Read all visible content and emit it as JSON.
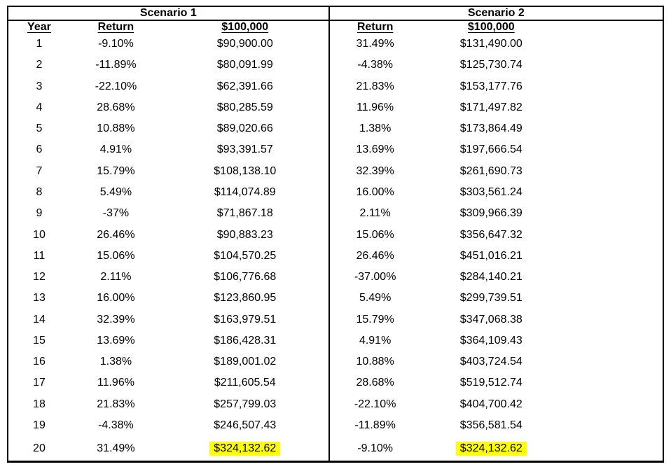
{
  "chart_data": {
    "type": "table",
    "scenario1_title": "Scenario 1",
    "scenario2_title": "Scenario 2",
    "headers": {
      "year": "Year",
      "return": "Return",
      "start_value": "$100,000"
    },
    "highlight_color": "#ffff00",
    "rows": [
      {
        "year": "1",
        "s1_return": "-9.10%",
        "s1_value": "$90,900.00",
        "s2_return": "31.49%",
        "s2_value": "$131,490.00"
      },
      {
        "year": "2",
        "s1_return": "-11.89%",
        "s1_value": "$80,091.99",
        "s2_return": "-4.38%",
        "s2_value": "$125,730.74"
      },
      {
        "year": "3",
        "s1_return": "-22.10%",
        "s1_value": "$62,391.66",
        "s2_return": "21.83%",
        "s2_value": "$153,177.76"
      },
      {
        "year": "4",
        "s1_return": "28.68%",
        "s1_value": "$80,285.59",
        "s2_return": "11.96%",
        "s2_value": "$171,497.82"
      },
      {
        "year": "5",
        "s1_return": "10.88%",
        "s1_value": "$89,020.66",
        "s2_return": "1.38%",
        "s2_value": "$173,864.49"
      },
      {
        "year": "6",
        "s1_return": "4.91%",
        "s1_value": "$93,391.57",
        "s2_return": "13.69%",
        "s2_value": "$197,666.54"
      },
      {
        "year": "7",
        "s1_return": "15.79%",
        "s1_value": "$108,138.10",
        "s2_return": "32.39%",
        "s2_value": "$261,690.73"
      },
      {
        "year": "8",
        "s1_return": "5.49%",
        "s1_value": "$114,074.89",
        "s2_return": "16.00%",
        "s2_value": "$303,561.24"
      },
      {
        "year": "9",
        "s1_return": "-37%",
        "s1_value": "$71,867.18",
        "s2_return": "2.11%",
        "s2_value": "$309,966.39"
      },
      {
        "year": "10",
        "s1_return": "26.46%",
        "s1_value": "$90,883.23",
        "s2_return": "15.06%",
        "s2_value": "$356,647.32"
      },
      {
        "year": "11",
        "s1_return": "15.06%",
        "s1_value": "$104,570.25",
        "s2_return": "26.46%",
        "s2_value": "$451,016.21"
      },
      {
        "year": "12",
        "s1_return": "2.11%",
        "s1_value": "$106,776.68",
        "s2_return": "-37.00%",
        "s2_value": "$284,140.21"
      },
      {
        "year": "13",
        "s1_return": "16.00%",
        "s1_value": "$123,860.95",
        "s2_return": "5.49%",
        "s2_value": "$299,739.51"
      },
      {
        "year": "14",
        "s1_return": "32.39%",
        "s1_value": "$163,979.51",
        "s2_return": "15.79%",
        "s2_value": "$347,068.38"
      },
      {
        "year": "15",
        "s1_return": "13.69%",
        "s1_value": "$186,428.31",
        "s2_return": "4.91%",
        "s2_value": "$364,109.43"
      },
      {
        "year": "16",
        "s1_return": "1.38%",
        "s1_value": "$189,001.02",
        "s2_return": "10.88%",
        "s2_value": "$403,724.54"
      },
      {
        "year": "17",
        "s1_return": "11.96%",
        "s1_value": "$211,605.54",
        "s2_return": "28.68%",
        "s2_value": "$519,512.74"
      },
      {
        "year": "18",
        "s1_return": "21.83%",
        "s1_value": "$257,799.03",
        "s2_return": "-22.10%",
        "s2_value": "$404,700.42"
      },
      {
        "year": "19",
        "s1_return": "-4.38%",
        "s1_value": "$246,507.43",
        "s2_return": "-11.89%",
        "s2_value": "$356,581.54"
      },
      {
        "year": "20",
        "s1_return": "31.49%",
        "s1_value": "$324,132.62",
        "s2_return": "-9.10%",
        "s2_value": "$324,132.62",
        "highlight": true
      }
    ]
  }
}
